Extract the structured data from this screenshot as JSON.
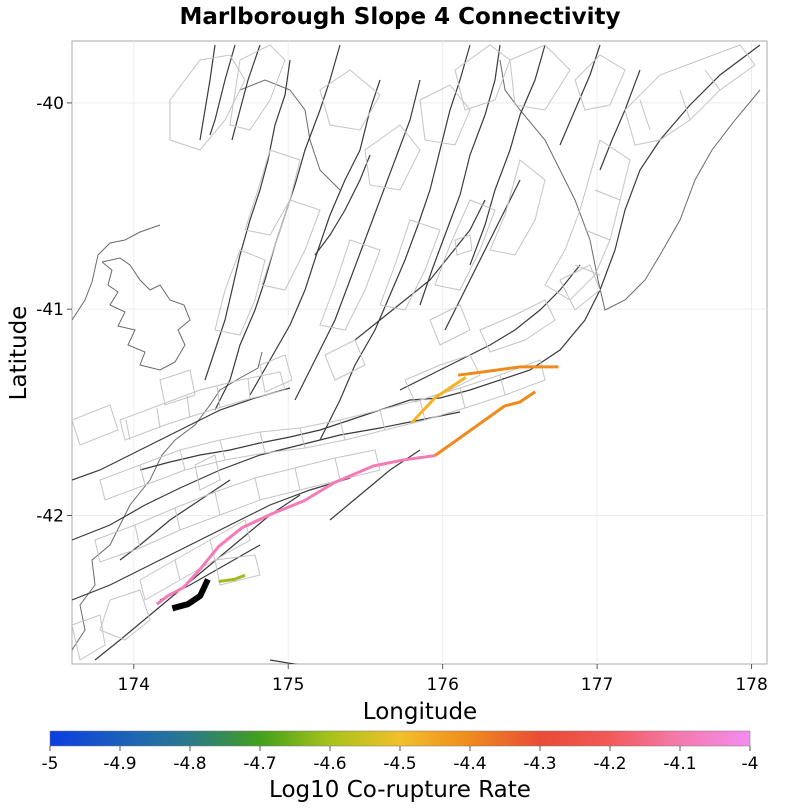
{
  "chart_data": {
    "type": "map",
    "title": "Marlborough Slope 4 Connectivity",
    "xlabel": "Longitude",
    "ylabel": "Latitude",
    "xlim": [
      173.6,
      178.1
    ],
    "ylim": [
      -42.72,
      -39.7
    ],
    "x_ticks": [
      174,
      175,
      176,
      177,
      178
    ],
    "y_ticks": [
      -40,
      -41,
      -42
    ],
    "x_tick_labels": [
      "174",
      "175",
      "176",
      "177",
      "178"
    ],
    "y_tick_labels": [
      "-40",
      "-41",
      "-42"
    ],
    "grid": true,
    "colorbar": {
      "label": "Log10 Co-rupture Rate",
      "range": [
        -5,
        -4
      ],
      "ticks": [
        -5,
        -4.9,
        -4.8,
        -4.7,
        -4.6,
        -4.5,
        -4.4,
        -4.3,
        -4.2,
        -4.1,
        -4
      ],
      "tick_labels": [
        "-5",
        "-4.9",
        "-4.8",
        "-4.7",
        "-4.6",
        "-4.5",
        "-4.4",
        "-4.3",
        "-4.2",
        "-4.1",
        "-4"
      ],
      "colors": [
        "#0a3de0",
        "#2a7a8a",
        "#43a01a",
        "#a7c21c",
        "#f2c02a",
        "#ef7a1e",
        "#e84c35",
        "#f47a8c",
        "#f48cf0"
      ]
    },
    "highlighted_sections": [
      {
        "name": "source",
        "value": null,
        "color": "#000000",
        "points": [
          [
            174.25,
            -42.45
          ],
          [
            174.35,
            -42.43
          ],
          [
            174.43,
            -42.39
          ],
          [
            174.48,
            -42.31
          ]
        ]
      },
      {
        "name": "green",
        "value": -4.65,
        "color": "#a7b81c",
        "points": [
          [
            174.55,
            -42.32
          ],
          [
            174.65,
            -42.31
          ],
          [
            174.72,
            -42.29
          ]
        ]
      },
      {
        "name": "pink",
        "value": -4.03,
        "color": "#f57ab8",
        "points": [
          [
            174.15,
            -42.43
          ],
          [
            174.22,
            -42.39
          ],
          [
            174.32,
            -42.35
          ],
          [
            174.43,
            -42.26
          ],
          [
            174.55,
            -42.15
          ],
          [
            174.7,
            -42.06
          ],
          [
            174.9,
            -41.99
          ],
          [
            175.1,
            -41.93
          ],
          [
            175.3,
            -41.84
          ],
          [
            175.55,
            -41.76
          ],
          [
            175.75,
            -41.73
          ],
          [
            175.95,
            -41.71
          ]
        ]
      },
      {
        "name": "orange",
        "value": -4.35,
        "color": "#ef8a1e",
        "points": [
          [
            175.95,
            -41.71
          ],
          [
            176.1,
            -41.63
          ],
          [
            176.25,
            -41.55
          ],
          [
            176.4,
            -41.47
          ],
          [
            176.5,
            -41.45
          ],
          [
            176.6,
            -41.4
          ]
        ]
      },
      {
        "name": "orange-upper",
        "value": -4.38,
        "color": "#ef8a1e",
        "points": [
          [
            176.1,
            -41.32
          ],
          [
            176.3,
            -41.3
          ],
          [
            176.5,
            -41.28
          ],
          [
            176.75,
            -41.28
          ]
        ]
      },
      {
        "name": "yellow-orange",
        "value": -4.45,
        "color": "#f5b323",
        "points": [
          [
            175.8,
            -41.55
          ],
          [
            175.95,
            -41.43
          ],
          [
            176.15,
            -41.33
          ]
        ]
      }
    ]
  }
}
